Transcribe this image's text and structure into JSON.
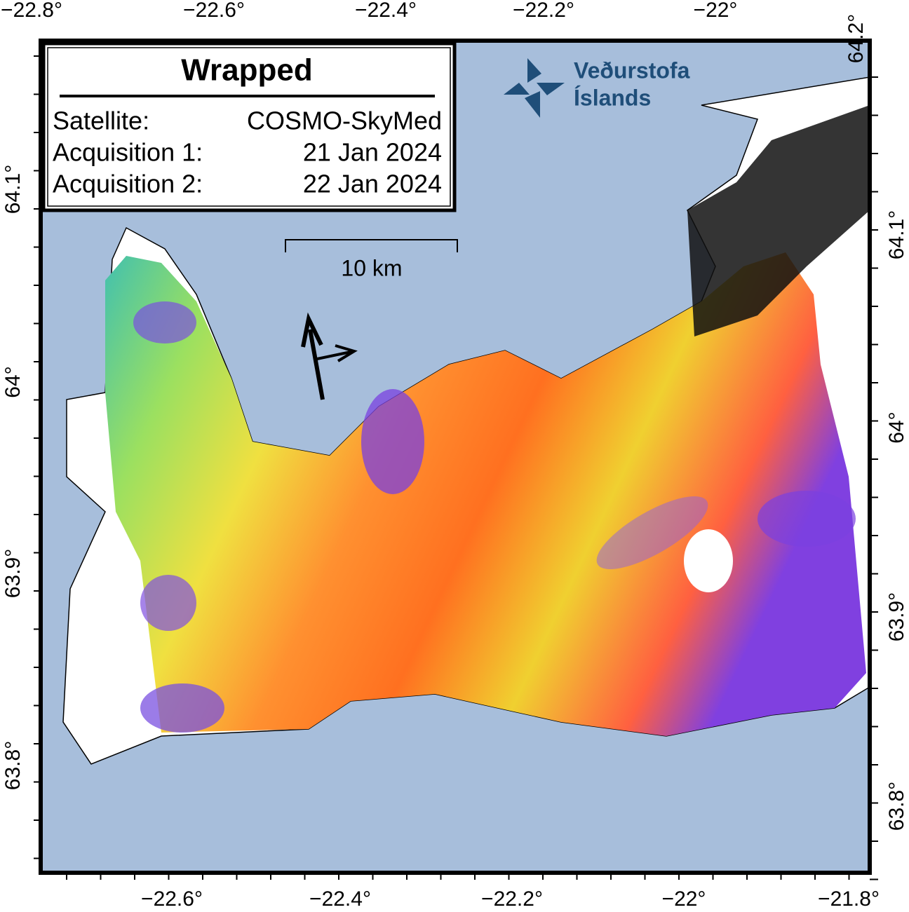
{
  "title": "Wrapped",
  "info": [
    {
      "label": "Satellite:",
      "value": "COSMO-SkyMed"
    },
    {
      "label": "Acquisition 1:",
      "value": "21 Jan 2024"
    },
    {
      "label": "Acquisition 2:",
      "value": "22 Jan 2024"
    }
  ],
  "scale_bar": "10 km",
  "logo": [
    "Veðurstofa",
    "Íslands"
  ],
  "axes": {
    "top": [
      "−22.8°",
      "−22.6°",
      "−22.4°",
      "−22.2°",
      "−22°"
    ],
    "bottom": [
      "−22.6°",
      "−22.4°",
      "−22.2°",
      "−22°",
      "−21.8°"
    ],
    "left": [
      "64.1°",
      "64°",
      "63.9°",
      "63.8°"
    ],
    "right": [
      "64.2°",
      "64.1°",
      "64°",
      "63.9°",
      "63.8°"
    ]
  }
}
